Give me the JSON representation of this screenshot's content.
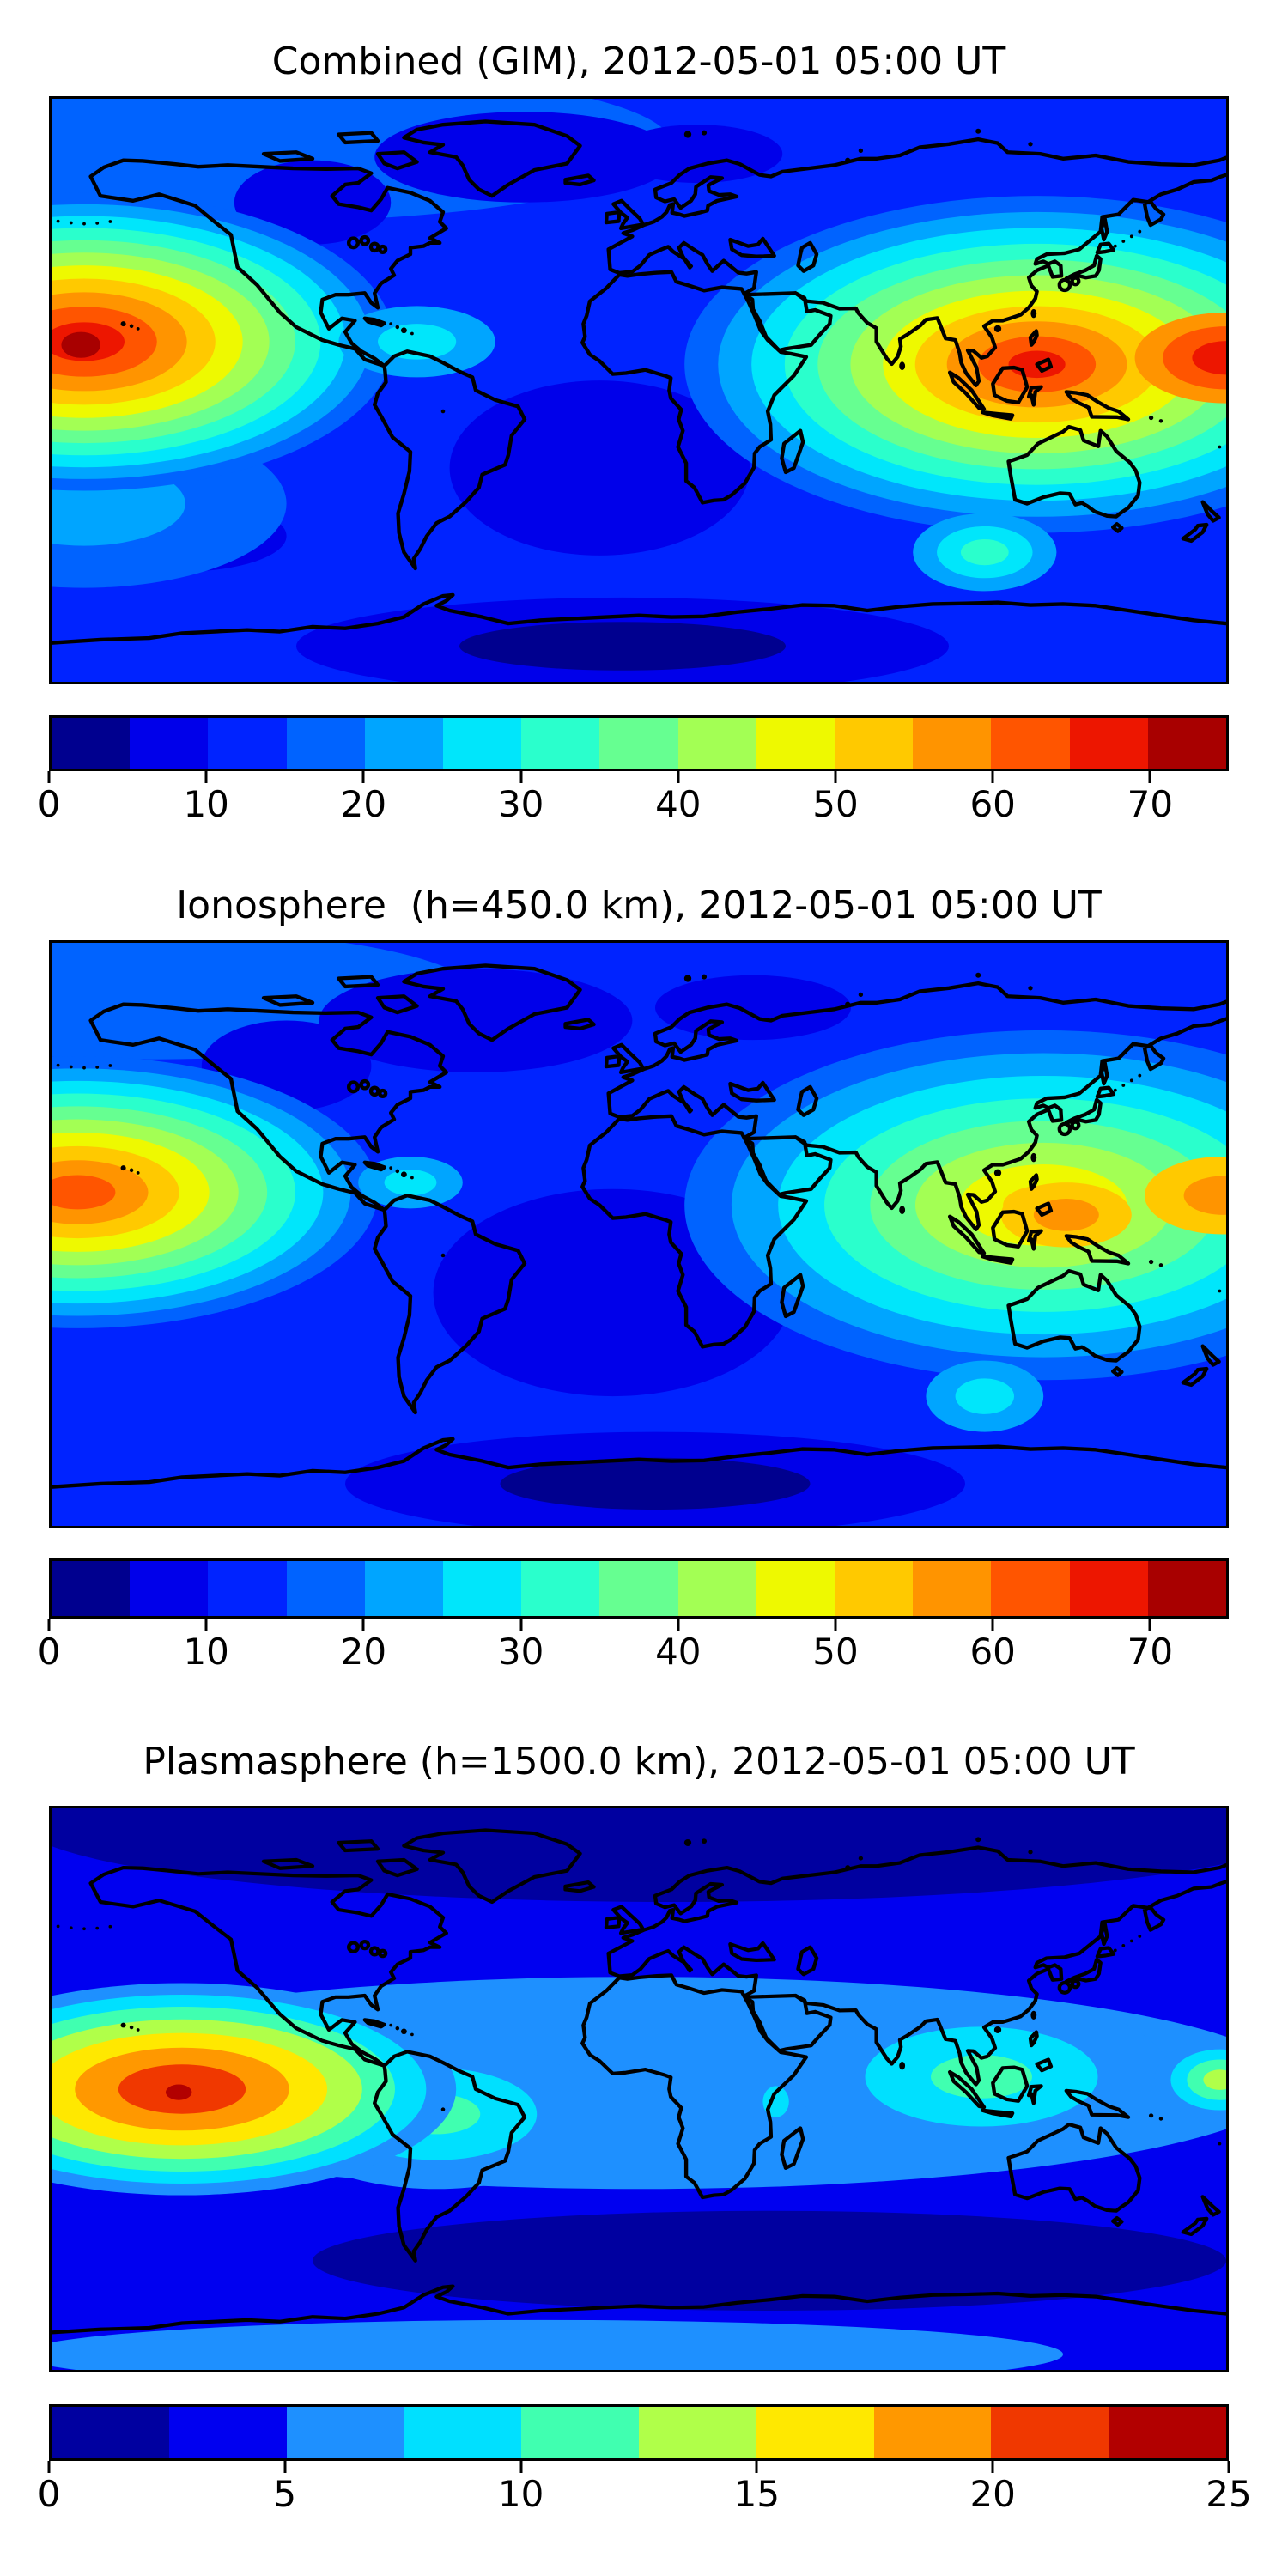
{
  "figure": {
    "background": "#ffffff",
    "coastline_color": "#000000",
    "text_color": "#000000"
  },
  "panels": [
    {
      "title": "Combined (GIM), 2012-05-01 05:00 UT",
      "colorbar": {
        "vmin": 0,
        "vmax": 75,
        "n_bands": 15,
        "tick_values": [
          0,
          10,
          20,
          30,
          40,
          50,
          60,
          70
        ],
        "tick_labels": [
          "0",
          "10",
          "20",
          "30",
          "40",
          "50",
          "60",
          "70"
        ]
      }
    },
    {
      "title": "Ionosphere  (h=450.0 km), 2012-05-01 05:00 UT",
      "colorbar": {
        "vmin": 0,
        "vmax": 75,
        "n_bands": 15,
        "tick_values": [
          0,
          10,
          20,
          30,
          40,
          50,
          60,
          70
        ],
        "tick_labels": [
          "0",
          "10",
          "20",
          "30",
          "40",
          "50",
          "60",
          "70"
        ]
      }
    },
    {
      "title": "Plasmasphere (h=1500.0 km), 2012-05-01 05:00 UT",
      "colorbar": {
        "vmin": 0,
        "vmax": 25,
        "n_bands": 10,
        "tick_values": [
          0,
          5,
          10,
          15,
          20,
          25
        ],
        "tick_labels": [
          "0",
          "5",
          "10",
          "15",
          "20",
          "25"
        ]
      }
    }
  ],
  "chart_data": [
    {
      "type": "heatmap",
      "title": "Combined (GIM), 2012-05-01 05:00 UT",
      "colormap": "jet",
      "value_range": [
        0,
        75
      ],
      "contour_interval": 5,
      "base_level": 12,
      "lon_range": [
        -180,
        180
      ],
      "lat_range": [
        -90,
        90
      ],
      "palette": [
        "#00008f",
        "#0000ea",
        "#0023ff",
        "#0063ff",
        "#00a5ff",
        "#00e6fb",
        "#2affcc",
        "#66ff91",
        "#a3ff54",
        "#eef900",
        "#ffc900",
        "#ff9400",
        "#ff5500",
        "#ed1600",
        "#a80000"
      ],
      "features": [
        {
          "name": "arctic-blue-band",
          "lon": -120,
          "lat": 76,
          "floor": 12,
          "peak": 18,
          "rx": 130,
          "ry": 24
        },
        {
          "name": "north-atlantic-low",
          "lon": -35,
          "lat": 72,
          "low": 6,
          "rx": 46,
          "ry": 14
        },
        {
          "name": "scandinavia-low",
          "lon": 18,
          "lat": 73,
          "low": 6,
          "rx": 26,
          "ry": 9
        },
        {
          "name": "canada-low",
          "lon": -100,
          "lat": 58,
          "low": 6,
          "rx": 24,
          "ry": 13
        },
        {
          "name": "south-atlantic-low",
          "lon": -12,
          "lat": -24,
          "low": 6,
          "rx": 46,
          "ry": 27
        },
        {
          "name": "south-polar-low",
          "lon": -5,
          "lat": -79,
          "low": 1,
          "rx": 100,
          "ry": 15
        },
        {
          "name": "south-pacific-low",
          "lon": -140,
          "lat": -45,
          "low": 6,
          "rx": 32,
          "ry": 11
        },
        {
          "name": "sw-pacific-blue",
          "lon": -170,
          "lat": -35,
          "floor": 12,
          "peak": 24,
          "rx": 62,
          "ry": 26
        },
        {
          "name": "pacific-hotspot",
          "lon": -170,
          "lat": 15,
          "peak": 69,
          "rx": 95,
          "ry": 46,
          "shrink": 0.85
        },
        {
          "name": "pacific-hotspot-core",
          "lon": -171,
          "lat": 14,
          "floor": 69,
          "peak": 74,
          "rx": 6,
          "ry": 4
        },
        {
          "name": "seasia-hotspot",
          "lon": 122,
          "lat": 8,
          "peak": 69,
          "rx": 108,
          "ry": 52,
          "shrink": 1.05
        },
        {
          "name": "dateline-red-lobe",
          "lon": 180,
          "lat": 10,
          "floor": 54,
          "peak": 69,
          "rx": 28,
          "ry": 14,
          "shrink": 0.9
        },
        {
          "name": "caribbean-cyan",
          "lon": -68,
          "lat": 15,
          "floor": 17,
          "peak": 29,
          "rx": 24,
          "ry": 11
        },
        {
          "name": "south-indian-cyan",
          "lon": 106,
          "lat": -50,
          "floor": 17,
          "peak": 32,
          "rx": 22,
          "ry": 12
        }
      ]
    },
    {
      "type": "heatmap",
      "title": "Ionosphere  (h=450.0 km), 2012-05-01 05:00 UT",
      "colormap": "jet",
      "value_range": [
        0,
        75
      ],
      "contour_interval": 5,
      "base_level": 12,
      "lon_range": [
        -180,
        180
      ],
      "lat_range": [
        -90,
        90
      ],
      "palette": [
        "#00008f",
        "#0000ea",
        "#0023ff",
        "#0063ff",
        "#00a5ff",
        "#00e6fb",
        "#2affcc",
        "#66ff91",
        "#a3ff54",
        "#eef900",
        "#ffc900",
        "#ff9400",
        "#ff5500",
        "#ed1600",
        "#a80000"
      ],
      "features": [
        {
          "name": "arctic-blue-band",
          "lon": -150,
          "lat": 74,
          "floor": 12,
          "peak": 18,
          "rx": 100,
          "ry": 20
        },
        {
          "name": "atlantic-africa-low",
          "lon": -8,
          "lat": -18,
          "low": 6,
          "rx": 55,
          "ry": 32
        },
        {
          "name": "south-polar-low",
          "lon": 5,
          "lat": -77,
          "low": 2,
          "rx": 95,
          "ry": 16
        },
        {
          "name": "north-atlantic-low",
          "lon": -50,
          "lat": 66,
          "low": 6,
          "rx": 48,
          "ry": 16
        },
        {
          "name": "west-canada-low",
          "lon": -108,
          "lat": 52,
          "low": 6,
          "rx": 26,
          "ry": 14
        },
        {
          "name": "russia-low",
          "lon": 35,
          "lat": 70,
          "low": 6,
          "rx": 30,
          "ry": 10
        },
        {
          "name": "pacific-hotspot",
          "lon": -172,
          "lat": 13,
          "peak": 62,
          "rx": 92,
          "ry": 42,
          "shrink": 0.9
        },
        {
          "name": "asia-region",
          "lon": 124,
          "lat": 9,
          "peak": 54,
          "rx": 110,
          "ry": 54,
          "shrink": 1.05
        },
        {
          "name": "philippine-orange",
          "lon": 131,
          "lat": 6,
          "floor": 49,
          "peak": 59,
          "rx": 20,
          "ry": 10
        },
        {
          "name": "dateline-orange",
          "lon": 179,
          "lat": 12,
          "floor": 49,
          "peak": 59,
          "rx": 24,
          "ry": 12
        },
        {
          "name": "caribbean-cyan",
          "lon": -70,
          "lat": 16,
          "floor": 17,
          "peak": 27,
          "rx": 16,
          "ry": 8
        },
        {
          "name": "south-indian-cyan",
          "lon": 106,
          "lat": -50,
          "floor": 17,
          "peak": 29,
          "rx": 18,
          "ry": 11
        }
      ]
    },
    {
      "type": "heatmap",
      "title": "Plasmasphere (h=1500.0 km), 2012-05-01 05:00 UT",
      "colormap": "jet",
      "value_range": [
        0,
        25
      ],
      "contour_interval": 2.5,
      "base_level": 4,
      "lon_range": [
        -180,
        180
      ],
      "lat_range": [
        -90,
        90
      ],
      "palette": [
        "#0000a0",
        "#0000f0",
        "#1e90ff",
        "#00e0ff",
        "#40ffb0",
        "#b0ff49",
        "#ffe800",
        "#ff9800",
        "#f03800",
        "#b20000"
      ],
      "features": [
        {
          "name": "north-polar-low",
          "lon": 10,
          "lat": 86,
          "low": 1,
          "rx": 200,
          "ry": 26
        },
        {
          "name": "south-ocean-low",
          "lon": 40,
          "lat": -55,
          "low": 1,
          "rx": 140,
          "ry": 16
        },
        {
          "name": "bottom-blue-band",
          "lon": -30,
          "lat": -85,
          "floor": 4,
          "peak": 7,
          "rx": 160,
          "ry": 11
        },
        {
          "name": "equatorial-band",
          "lon": 0,
          "lat": 2,
          "floor": 4,
          "peak": 7,
          "rx": 200,
          "ry": 34
        },
        {
          "name": "samerica-cyan",
          "lon": -62,
          "lat": -8,
          "floor": 4,
          "peak": 12,
          "rx": 50,
          "ry": 24,
          "shrink": 1.2
        },
        {
          "name": "seasia-cyan",
          "lon": 105,
          "lat": 4,
          "floor": 4,
          "peak": 12,
          "rx": 58,
          "ry": 26,
          "shrink": 1.2
        },
        {
          "name": "africa-cyan-finger",
          "lon": 42,
          "lat": -4,
          "floor": 4,
          "peak": 10,
          "rx": 8,
          "ry": 10
        },
        {
          "name": "dateline-green",
          "lon": 178,
          "lat": 3,
          "floor": 4,
          "peak": 14,
          "rx": 20,
          "ry": 13
        },
        {
          "name": "pacific-hotspot",
          "lon": -140,
          "lat": 0,
          "floor": 4,
          "peak": 22,
          "rx": 84,
          "ry": 34,
          "shrink": 0.75
        },
        {
          "name": "pacific-hotspot-core",
          "lon": -141,
          "lat": -1,
          "floor": 22,
          "peak": 24.9,
          "rx": 4,
          "ry": 2.5
        }
      ]
    }
  ]
}
